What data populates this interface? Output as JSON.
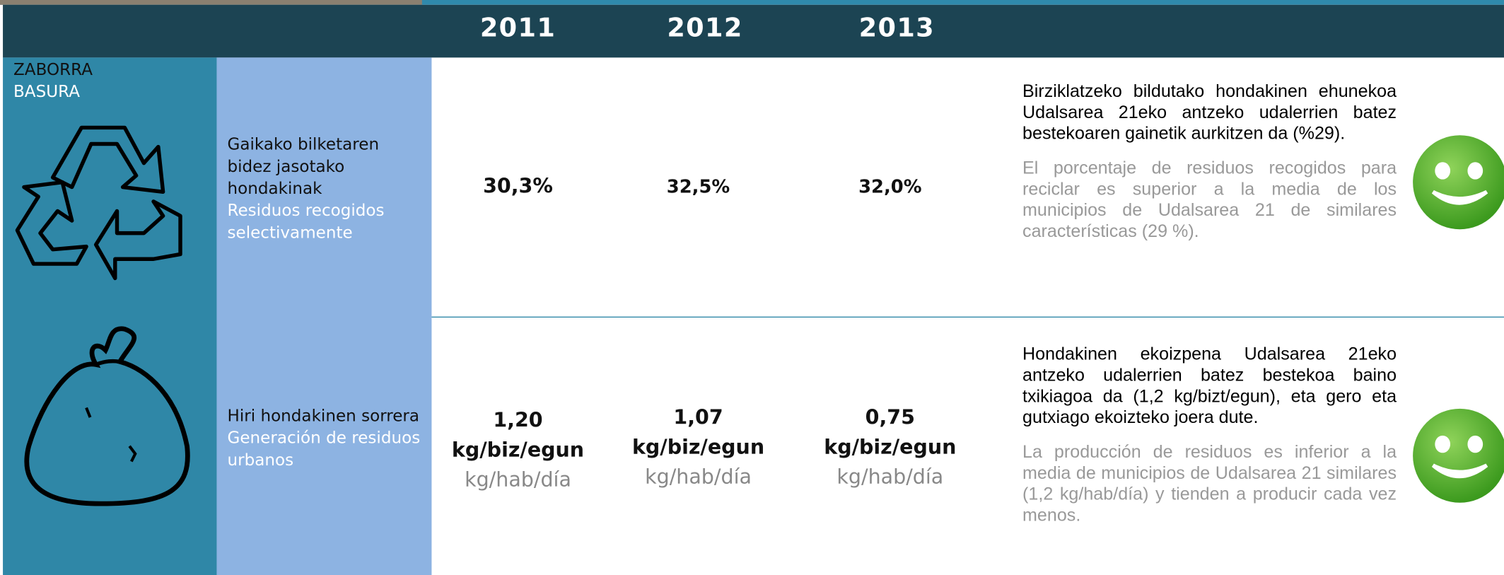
{
  "header": {
    "years": [
      "2011",
      "2012",
      "2013"
    ]
  },
  "section": {
    "title_eu": "ZABORRA",
    "title_es": "BASURA"
  },
  "rows": [
    {
      "label_eu": "Gaikako bilketaren bidez jasotako hondakinak",
      "label_es": "Residuos recogidos selectivamente",
      "values": [
        {
          "value": "30,3%"
        },
        {
          "value": "32,5%"
        },
        {
          "value": "32,0%"
        }
      ],
      "text_eu": "Birziklatzeko bildutako hondakinen ehunekoa Udalsarea 21eko antzeko udalerrien batez bestekoaren gainetik aurkitzen da (%29).",
      "text_es": "El porcentaje de residuos recogidos para reciclar es superior a la media de los municipios de Udalsarea 21 de similares características (29 %)."
    },
    {
      "label_eu": "Hiri hondakinen sorrera",
      "label_es": "Generación de residuos urbanos",
      "values": [
        {
          "value": "1,20",
          "unit_eu": "kg/biz/egun",
          "unit_es": "kg/hab/día"
        },
        {
          "value": "1,07",
          "unit_eu": "kg/biz/egun",
          "unit_es": "kg/hab/día"
        },
        {
          "value": "0,75",
          "unit_eu": "kg/biz/egun",
          "unit_es": "kg/hab/día"
        }
      ],
      "text_eu": "Hondakinen ekoizpena Udalsarea 21eko antzeko udalerrien batez bestekoa baino txikiagoa da (1,2 kg/bizt/egun), eta gero eta gutxiago ekoizteko joera dute.",
      "text_es": "La producción de residuos es inferior a la media de municipios de Udalsarea 21 similares (1,2 kg/hab/día) y tienden a producir cada vez menos."
    }
  ]
}
